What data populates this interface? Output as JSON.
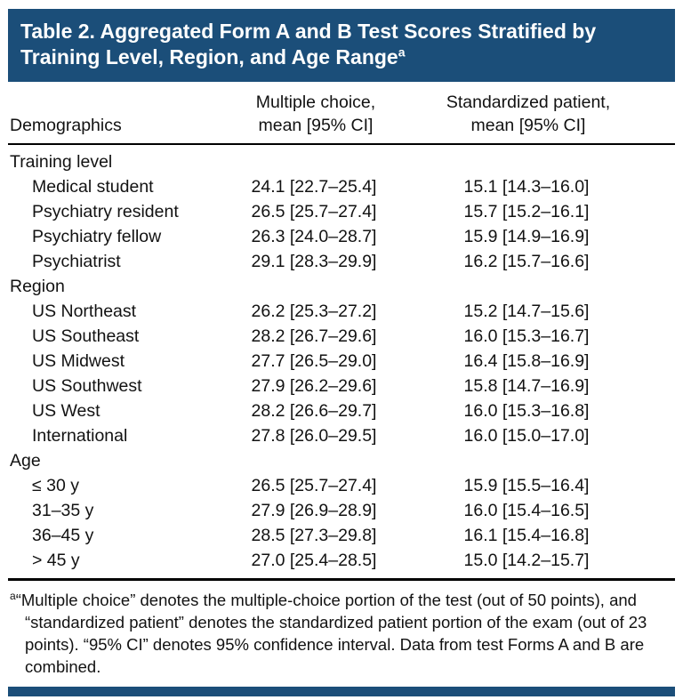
{
  "panel": {
    "accent_color": "#1b4e79",
    "title": "Table 2. Aggregated Form A and B Test Scores Stratified by Training Level, Region, and Age Range",
    "title_marker": "a",
    "header": {
      "demographics": "Demographics",
      "mc_line1": "Multiple choice,",
      "mc_line2": "mean [95% CI]",
      "sp_line1": "Standardized patient,",
      "sp_line2": "mean [95% CI]"
    },
    "sections": [
      {
        "label": "Training level",
        "rows": [
          {
            "label": "Medical student",
            "mc": "24.1 [22.7–25.4]",
            "sp": "15.1 [14.3–16.0]"
          },
          {
            "label": "Psychiatry resident",
            "mc": "26.5 [25.7–27.4]",
            "sp": "15.7 [15.2–16.1]"
          },
          {
            "label": "Psychiatry fellow",
            "mc": "26.3 [24.0–28.7]",
            "sp": "15.9 [14.9–16.9]"
          },
          {
            "label": "Psychiatrist",
            "mc": "29.1 [28.3–29.9]",
            "sp": "16.2 [15.7–16.6]"
          }
        ]
      },
      {
        "label": "Region",
        "rows": [
          {
            "label": "US Northeast",
            "mc": "26.2 [25.3–27.2]",
            "sp": "15.2 [14.7–15.6]"
          },
          {
            "label": "US Southeast",
            "mc": "28.2 [26.7–29.6]",
            "sp": "16.0 [15.3–16.7]"
          },
          {
            "label": "US Midwest",
            "mc": "27.7 [26.5–29.0]",
            "sp": "16.4 [15.8–16.9]"
          },
          {
            "label": "US Southwest",
            "mc": "27.9 [26.2–29.6]",
            "sp": "15.8 [14.7–16.9]"
          },
          {
            "label": "US West",
            "mc": "28.2 [26.6–29.7]",
            "sp": "16.0 [15.3–16.8]"
          },
          {
            "label": "International",
            "mc": "27.8 [26.0–29.5]",
            "sp": "16.0 [15.0–17.0]"
          }
        ]
      },
      {
        "label": "Age",
        "rows": [
          {
            "label": "≤ 30 y",
            "mc": "26.5 [25.7–27.4]",
            "sp": "15.9 [15.5–16.4]"
          },
          {
            "label": "31–35 y",
            "mc": "27.9 [26.9–28.9]",
            "sp": "16.0 [15.4–16.5]"
          },
          {
            "label": "36–45 y",
            "mc": "28.5 [27.3–29.8]",
            "sp": "16.1 [15.4–16.8]"
          },
          {
            "label": "> 45 y",
            "mc": "27.0 [25.4–28.5]",
            "sp": "15.0 [14.2–15.7]"
          }
        ]
      }
    ],
    "footnote_marker": "a",
    "footnote": "“Multiple choice” denotes the multiple-choice portion of the test (out of 50 points), and “standardized patient” denotes the standardized patient portion of the exam (out of 23 points). “95% CI” denotes 95% confidence interval. Data from test Forms A and B are combined."
  }
}
